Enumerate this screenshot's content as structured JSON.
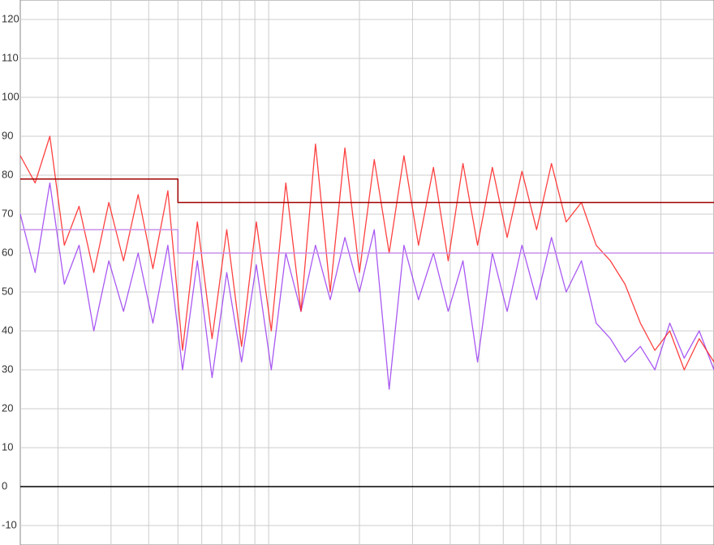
{
  "chart_data": {
    "type": "line",
    "log_x": true,
    "grid": true,
    "xlim": [
      0.15,
      30
    ],
    "ylim": [
      -15,
      125
    ],
    "yticks": [
      -10,
      0,
      10,
      20,
      30,
      40,
      50,
      60,
      70,
      80,
      90,
      100,
      110,
      120
    ],
    "x": [
      0.15,
      0.168,
      0.188,
      0.21,
      0.235,
      0.263,
      0.295,
      0.33,
      0.369,
      0.413,
      0.463,
      0.518,
      0.58,
      0.649,
      0.726,
      0.813,
      0.91,
      1.02,
      1.14,
      1.28,
      1.43,
      1.6,
      1.79,
      2.0,
      2.24,
      2.51,
      2.81,
      3.14,
      3.52,
      3.94,
      4.41,
      4.93,
      5.52,
      6.18,
      6.92,
      7.74,
      8.67,
      9.7,
      10.9,
      12.2,
      13.6,
      15.2,
      17.1,
      19.1,
      21.4,
      23.9,
      26.8,
      30
    ],
    "series": [
      {
        "color": "#9a3cf0",
        "values": [
          70,
          55,
          78,
          52,
          62,
          40,
          58,
          45,
          60,
          42,
          62,
          30,
          58,
          28,
          55,
          32,
          57,
          30,
          60,
          45,
          62,
          48,
          64,
          50,
          66,
          25,
          62,
          48,
          60,
          45,
          58,
          32,
          60,
          45,
          62,
          48,
          64,
          50,
          58,
          42,
          38,
          32,
          36,
          30,
          42,
          33,
          40,
          30
        ]
      },
      {
        "color": "#ff2020",
        "values": [
          85,
          78,
          90,
          62,
          72,
          55,
          73,
          58,
          75,
          56,
          76,
          35,
          68,
          38,
          66,
          36,
          68,
          40,
          78,
          45,
          88,
          50,
          87,
          55,
          84,
          60,
          85,
          62,
          82,
          58,
          83,
          62,
          82,
          64,
          81,
          66,
          83,
          68,
          73,
          62,
          58,
          52,
          42,
          35,
          40,
          30,
          38,
          32
        ]
      },
      {
        "color": "#a00000",
        "x": [
          0.15,
          0.5,
          0.5,
          30
        ],
        "values": [
          79,
          79,
          73,
          73
        ]
      },
      {
        "color": "#c890e8",
        "x": [
          0.15,
          0.5,
          0.5,
          30
        ],
        "values": [
          66,
          66,
          60,
          60
        ]
      }
    ]
  }
}
